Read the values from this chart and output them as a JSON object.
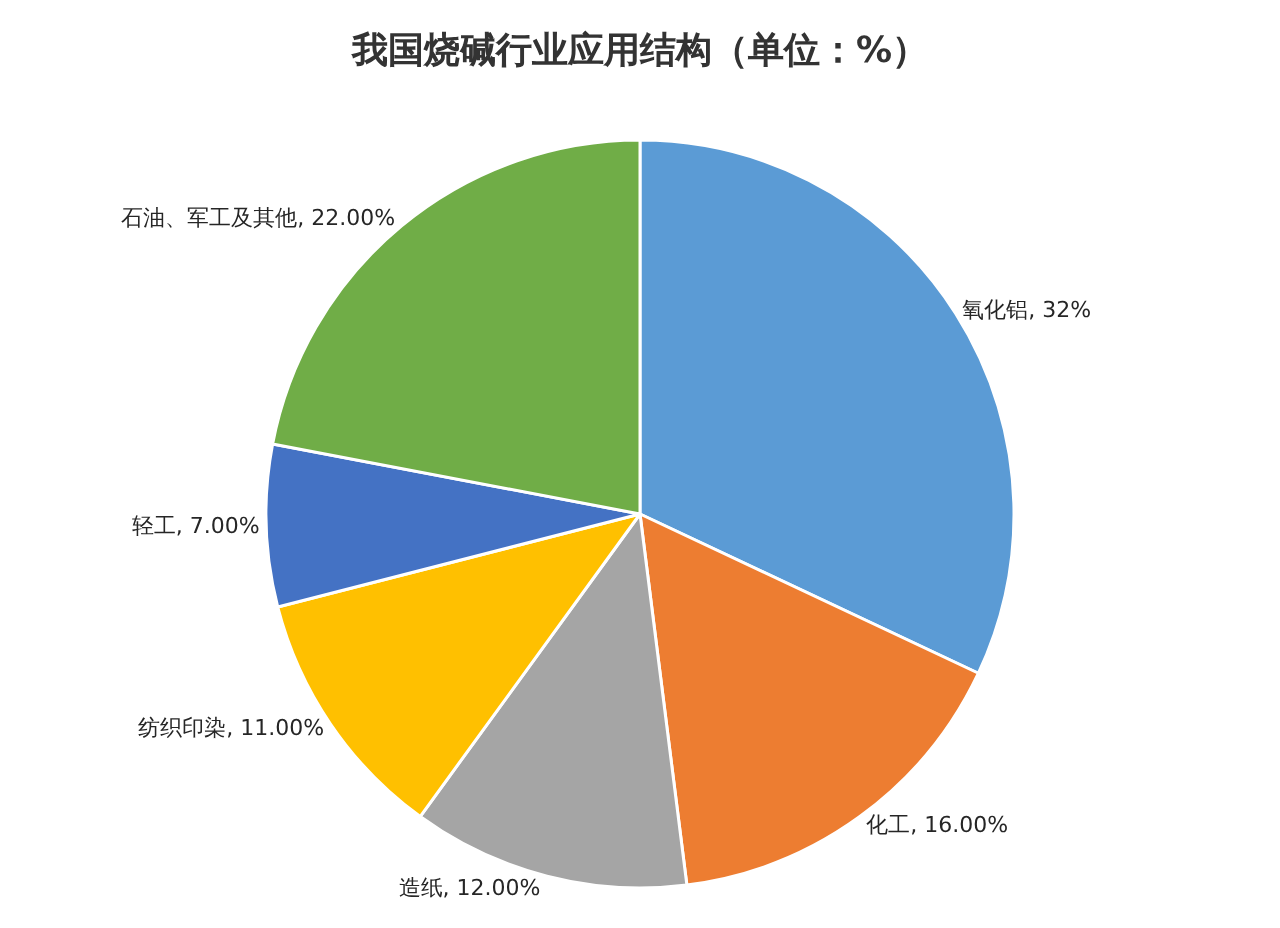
{
  "chart_data": {
    "type": "pie",
    "title": "我国烧碱行业应用结构（单位：%）",
    "categories": [
      "氧化铝",
      "化工",
      "造纸",
      "纺织印染",
      "轻工",
      "石油、军工及其他"
    ],
    "values": [
      32,
      16,
      12,
      11,
      7,
      22
    ],
    "colors": [
      "#5b9bd5",
      "#ed7d31",
      "#a5a5a5",
      "#ffc000",
      "#4472c4",
      "#70ad47"
    ],
    "value_labels": [
      "32%",
      "16.00%",
      "12.00%",
      "11.00%",
      "7.00%",
      "22.00%"
    ],
    "legend": false
  }
}
